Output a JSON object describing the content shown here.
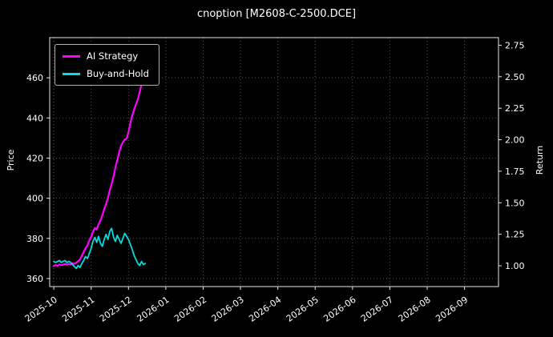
{
  "title": "cnoption [M2608-C-2500.DCE]",
  "axes": {
    "left_label": "Price",
    "right_label": "Return"
  },
  "legend": {
    "items": [
      {
        "label": "AI Strategy"
      },
      {
        "label": "Buy-and-Hold"
      }
    ]
  },
  "colors": {
    "background": "#000000",
    "text": "#ffffff",
    "grid": "#555555",
    "spine": "#e8e8e8",
    "ai_strategy": "#ff00ff",
    "buy_and_hold": "#00dede"
  },
  "chart_data": {
    "type": "line",
    "title": "cnoption [M2608-C-2500.DCE]",
    "xlabel": "",
    "left_ylabel": "Price",
    "right_ylabel": "Return",
    "grid": true,
    "legend_position": "upper left",
    "x_tick_labels": [
      "2025-10",
      "2025-11",
      "2025-12",
      "2026-01",
      "2026-02",
      "2026-03",
      "2026-04",
      "2026-05",
      "2026-06",
      "2026-07",
      "2026-08",
      "2026-09"
    ],
    "x_tick_positions": [
      0,
      1,
      2,
      3,
      4,
      5,
      6,
      7,
      8,
      9,
      10,
      11
    ],
    "xlim": [
      -0.11,
      11.91
    ],
    "price_ticks": [
      360,
      380,
      400,
      420,
      440,
      460
    ],
    "price_lim": [
      356,
      480
    ],
    "return_ticks": [
      1.0,
      1.25,
      1.5,
      1.75,
      2.0,
      2.25,
      2.5,
      2.75
    ],
    "return_lim": [
      0.835,
      2.81
    ],
    "x_months": [
      0,
      0.05,
      0.1,
      0.15,
      0.2,
      0.25,
      0.3,
      0.35,
      0.4,
      0.45,
      0.5,
      0.55,
      0.6,
      0.65,
      0.7,
      0.75,
      0.8,
      0.85,
      0.9,
      0.95,
      1,
      1.05,
      1.1,
      1.15,
      1.2,
      1.25,
      1.3,
      1.35,
      1.4,
      1.45,
      1.5,
      1.55,
      1.6,
      1.65,
      1.7,
      1.75,
      1.8,
      1.85,
      1.9,
      1.95,
      2,
      2.05,
      2.1,
      2.15,
      2.2,
      2.25,
      2.3,
      2.35,
      2.4,
      2.45
    ],
    "series": [
      {
        "name": "AI Strategy",
        "axis": "return",
        "color": "#ff00ff",
        "values": [
          1.0,
          1.005,
          1.0,
          1.01,
          1.005,
          1.01,
          1.015,
          1.01,
          1.015,
          1.01,
          1.02,
          1.015,
          1.025,
          1.035,
          1.05,
          1.08,
          1.11,
          1.14,
          1.16,
          1.2,
          1.23,
          1.27,
          1.3,
          1.29,
          1.33,
          1.36,
          1.4,
          1.45,
          1.49,
          1.54,
          1.6,
          1.65,
          1.71,
          1.78,
          1.84,
          1.9,
          1.95,
          1.98,
          2.0,
          2.01,
          2.06,
          2.13,
          2.19,
          2.24,
          2.28,
          2.32,
          2.38,
          2.44,
          2.48,
          2.5
        ]
      },
      {
        "name": "Buy-and-Hold",
        "axis": "price",
        "color": "#00dede",
        "values": [
          368.5,
          368,
          368.5,
          369,
          368,
          368.5,
          369,
          368,
          368.5,
          368,
          367,
          366,
          365,
          366.5,
          365.5,
          367.5,
          369,
          371,
          370,
          372.5,
          375,
          378.5,
          380.5,
          378,
          381,
          377.5,
          376,
          379.5,
          382,
          379.5,
          383.5,
          385,
          380.5,
          378.5,
          381.5,
          379.5,
          377.5,
          380,
          382.5,
          381,
          379.5,
          377,
          374.5,
          371.5,
          369.5,
          367.5,
          366.5,
          368.5,
          367,
          367.5
        ]
      }
    ]
  }
}
